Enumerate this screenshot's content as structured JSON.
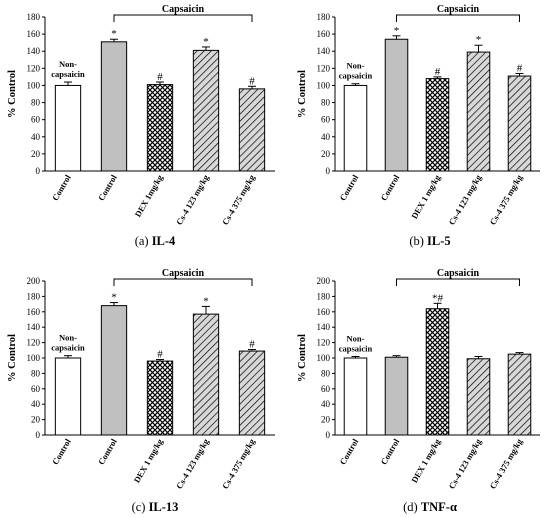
{
  "chart_data": [
    {
      "type": "bar",
      "caption_letter": "(a)",
      "caption_name": "IL-4",
      "categories": [
        "Control",
        "Control",
        "DEX 1mg/kg",
        "Cs-4 123 mg/kg",
        "Cs-4 375 mg/kg"
      ],
      "values": [
        100,
        151,
        101,
        141,
        96
      ],
      "errors": [
        4,
        3,
        3,
        4,
        3
      ],
      "markers": [
        "",
        "*",
        "#",
        "*",
        "#"
      ],
      "patterns": [
        "white",
        "gray",
        "crosshatch",
        "diagonal",
        "diagonal"
      ],
      "ylabel": "% Control",
      "ylim": [
        0,
        180
      ],
      "yticks": [
        0,
        20,
        40,
        60,
        80,
        100,
        120,
        140,
        160,
        180
      ],
      "group_label": "Capsaicin",
      "baseline_annotation": [
        "Non-",
        "capsaicin"
      ]
    },
    {
      "type": "bar",
      "caption_letter": "(b)",
      "caption_name": "IL-5",
      "categories": [
        "Control",
        "Control",
        "DEX 1 mg/kg",
        "Cs-4 123 mg/kg",
        "Cs-4 375 mg/kg"
      ],
      "values": [
        100,
        154,
        108,
        139,
        111
      ],
      "errors": [
        2,
        4,
        2,
        8,
        3
      ],
      "markers": [
        "",
        "*",
        "#",
        "*",
        "#"
      ],
      "patterns": [
        "white",
        "gray",
        "crosshatch",
        "diagonal",
        "diagonal"
      ],
      "ylabel": "% Control",
      "ylim": [
        0,
        180
      ],
      "yticks": [
        0,
        20,
        40,
        60,
        80,
        100,
        120,
        140,
        160,
        180
      ],
      "group_label": "Capsaicin",
      "baseline_annotation": [
        "Non-",
        "capsaicin"
      ]
    },
    {
      "type": "bar",
      "caption_letter": "(c)",
      "caption_name": "IL-13",
      "categories": [
        "Control",
        "Control",
        "DEX 1 mg/kg",
        "Cs-4 123 mg/kg",
        "Cs-4 375 mg/kg"
      ],
      "values": [
        100,
        168,
        96,
        157,
        109
      ],
      "errors": [
        3,
        4,
        2,
        10,
        2
      ],
      "markers": [
        "",
        "*",
        "#",
        "*",
        "#"
      ],
      "patterns": [
        "white",
        "gray",
        "crosshatch",
        "diagonal",
        "diagonal"
      ],
      "ylabel": "% Control",
      "ylim": [
        0,
        200
      ],
      "yticks": [
        0,
        20,
        40,
        60,
        80,
        100,
        120,
        140,
        160,
        180,
        200
      ],
      "group_label": "Capsaicin",
      "baseline_annotation": [
        "Non-",
        "capsaicin"
      ]
    },
    {
      "type": "bar",
      "caption_letter": "(d)",
      "caption_name": "TNF-α",
      "categories": [
        "Control",
        "Control",
        "DEX 1 mg/kg",
        "Cs-4 123 mg/kg",
        "Cs-4 375 mg/kg"
      ],
      "values": [
        100,
        101,
        164,
        99,
        105
      ],
      "errors": [
        2,
        2,
        7,
        3,
        2
      ],
      "markers": [
        "",
        "",
        "*#",
        "",
        ""
      ],
      "patterns": [
        "white",
        "gray",
        "crosshatch",
        "diagonal",
        "diagonal"
      ],
      "ylabel": "% Control",
      "ylim": [
        0,
        200
      ],
      "yticks": [
        0,
        20,
        40,
        60,
        80,
        100,
        120,
        140,
        160,
        180,
        200
      ],
      "group_label": "Capsaicin",
      "baseline_annotation": [
        "Non-",
        "capsaicin"
      ]
    }
  ],
  "colors": {
    "control_fill": "#ffffff",
    "capsaicin_fill": "#c0c0c0",
    "pattern_stroke": "#000000"
  }
}
